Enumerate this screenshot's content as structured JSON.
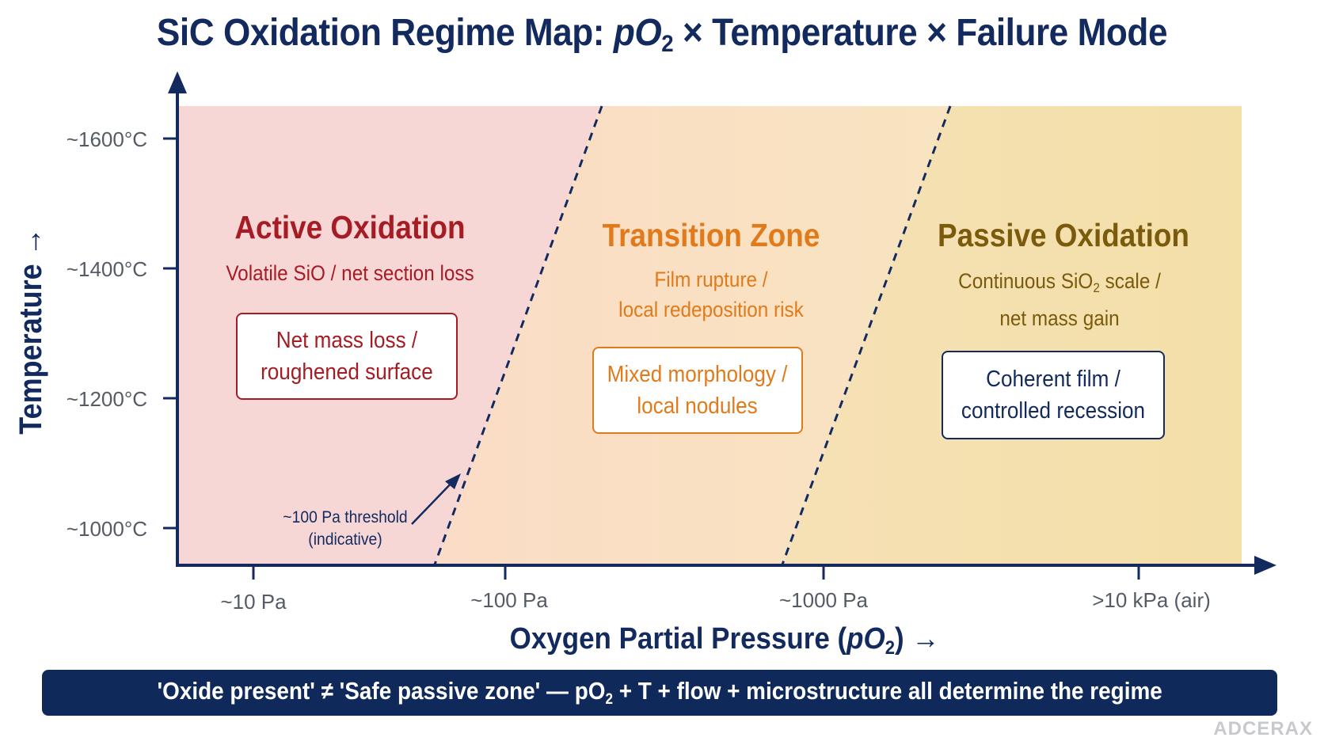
{
  "title": {
    "part1": "SiC Oxidation Regime Map: ",
    "p": "pO",
    "sub": "2",
    "part2": " × Temperature × Failure Mode"
  },
  "axes": {
    "y_label": "Temperature →",
    "y_ticks": [
      "~1600°C",
      "~1400°C",
      "~1200°C",
      "~1000°C"
    ],
    "x_label_main": "Oxygen Partial Pressure (",
    "x_label_p": "pO",
    "x_label_sub": "2",
    "x_label_end": ") →",
    "x_ticks": [
      "~10 Pa",
      "~100 Pa",
      "~1000 Pa",
      ">10 kPa (air)"
    ]
  },
  "zones": {
    "active": {
      "title": "Active Oxidation",
      "subtitle": "Volatile SiO / net section loss",
      "box_line1": "Net mass loss /",
      "box_line2": "roughened surface",
      "color": "#a51c24",
      "fill": "#f7d6d6"
    },
    "transition": {
      "title": "Transition Zone",
      "subtitle_line1": "Film rupture /",
      "subtitle_line2": "local redeposition risk",
      "box_line1": "Mixed morphology /",
      "box_line2": "local nodules",
      "color": "#e07a1a",
      "fill": "#fbe3c8"
    },
    "passive": {
      "title": "Passive Oxidation",
      "subtitle_line1a": "Continuous SiO",
      "subtitle_line1_sub": "2",
      "subtitle_line1b": " scale /",
      "subtitle_line2": "net mass gain",
      "box_line1": "Coherent film /",
      "box_line2": "controlled recession",
      "color": "#7a5a0c",
      "fill": "#f5e1b0"
    }
  },
  "threshold": {
    "line1": "~100 Pa threshold",
    "line2": "(indicative)"
  },
  "banner": {
    "part1": "'Oxide present' ≠ 'Safe passive zone' — pO",
    "sub": "2",
    "part2": " + T + flow + microstructure all determine the regime"
  },
  "brand": "ADCERAX",
  "colors": {
    "navy": "#132a5e",
    "axis": "#132a5e"
  }
}
